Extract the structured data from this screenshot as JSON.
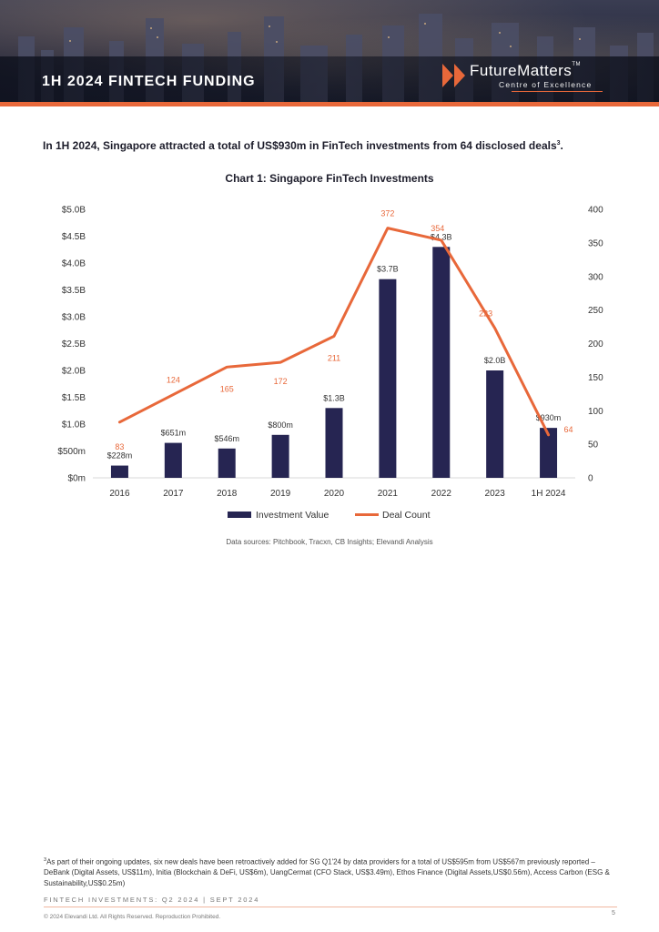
{
  "header": {
    "title": "1H 2024 FINTECH FUNDING",
    "logo": {
      "brand": "FutureMatters",
      "tm": "TM",
      "subtitle": "Centre of Excellence"
    }
  },
  "intro": {
    "text": "In 1H 2024, Singapore attracted a total of US$930m in FinTech investments from 64 disclosed deals",
    "footnote_ref": "3",
    "end": "."
  },
  "chart_data": {
    "type": "bar",
    "title": "Chart 1: Singapore FinTech Investments",
    "categories": [
      "2016",
      "2017",
      "2018",
      "2019",
      "2020",
      "2021",
      "2022",
      "2023",
      "1H 2024"
    ],
    "series": [
      {
        "name": "Investment  Value",
        "type": "bar",
        "axis": "left",
        "values": [
          228,
          651,
          546,
          800,
          1300,
          3700,
          4300,
          2000,
          930
        ],
        "labels": [
          "$228m",
          "$651m",
          "$546m",
          "$800m",
          "$1.3B",
          "$3.7B",
          "$4.3B",
          "$2.0B",
          "$930m"
        ],
        "color": "#262552"
      },
      {
        "name": "Deal  Count",
        "type": "line",
        "axis": "right",
        "values": [
          83,
          124,
          165,
          172,
          211,
          372,
          354,
          223,
          64
        ],
        "color": "#e8683a"
      }
    ],
    "y_left": {
      "min": 0,
      "max": 5000,
      "unit": "US$m",
      "ticks": [
        0,
        500,
        1000,
        1500,
        2000,
        2500,
        3000,
        3500,
        4000,
        4500,
        5000
      ],
      "tick_labels": [
        "$0m",
        "$500m",
        "$1.0B",
        "$1.5B",
        "$2.0B",
        "$2.5B",
        "$3.0B",
        "$3.5B",
        "$4.0B",
        "$4.5B",
        "$5.0B"
      ]
    },
    "y_right": {
      "min": 0,
      "max": 400,
      "ticks": [
        0,
        50,
        100,
        150,
        200,
        250,
        300,
        350,
        400
      ],
      "tick_labels": [
        "0",
        "50",
        "100",
        "150",
        "200",
        "250",
        "300",
        "350",
        "400"
      ]
    },
    "grid": false,
    "legend": "bottom"
  },
  "sources": "Data sources: Pitchbook, Tracxn, CB Insights; Elevandi Analysis",
  "footnote": {
    "marker": "3",
    "text": "As part of their ongoing updates, six new deals have been retroactively added for SG Q1'24 by data providers for a total of US$595m from US$567m previously reported – DeBank (Digital Assets, US$11m), Initia (Blockchain & DeFi, US$6m), UangCermat (CFO Stack, US$3.49m), Ethos Finance (Digital Assets,US$0.56m), Access Carbon (ESG & Sustainability,US$0.25m)"
  },
  "footer": {
    "running_head": "FINTECH INVESTMENTS: Q2 2024  | SEPT 2024",
    "copyright": "© 2024 Elevandi Ltd. All Rights Reserved. Reproduction Prohibited.",
    "page_number": "5"
  }
}
